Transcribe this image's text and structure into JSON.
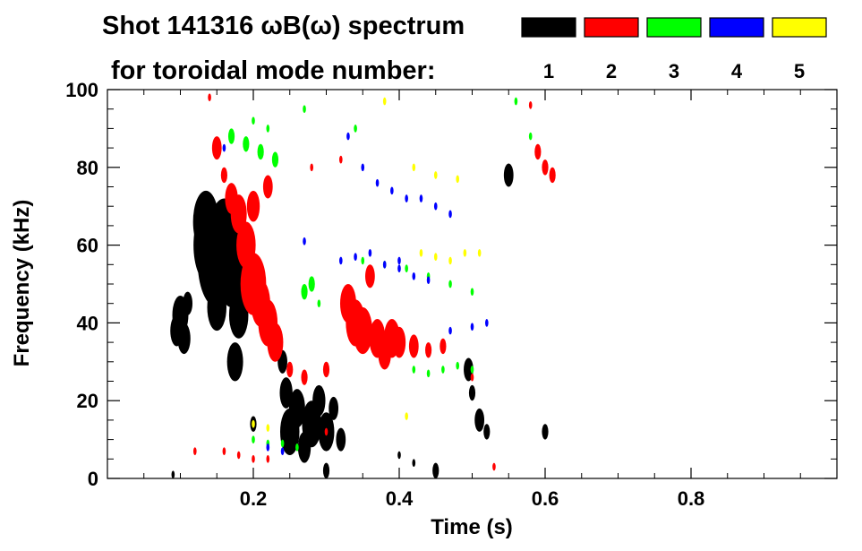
{
  "chart_data": {
    "type": "scatter",
    "title_line1": "Shot 141316 ωB(ω) spectrum",
    "title_line2": "for toroidal mode number:",
    "xlabel": "Time (s)",
    "ylabel": "Frequency (kHz)",
    "xlim": [
      0.0,
      1.0
    ],
    "ylim": [
      0,
      100
    ],
    "x_ticks": [
      0.2,
      0.4,
      0.6,
      0.8
    ],
    "x_tick_labels": [
      "0.2",
      "0.4",
      "0.6",
      "0.8"
    ],
    "y_ticks": [
      0,
      20,
      40,
      60,
      80,
      100
    ],
    "y_tick_labels": [
      "0",
      "20",
      "40",
      "60",
      "80",
      "100"
    ],
    "legend_position": "top-right",
    "series": [
      {
        "name": "1",
        "color": "#000000",
        "points": [
          [
            0.095,
            38,
            4
          ],
          [
            0.1,
            42,
            5
          ],
          [
            0.105,
            36,
            4
          ],
          [
            0.11,
            45,
            3
          ],
          [
            0.135,
            66,
            8
          ],
          [
            0.14,
            60,
            10
          ],
          [
            0.15,
            56,
            12
          ],
          [
            0.16,
            62,
            10
          ],
          [
            0.17,
            52,
            8
          ],
          [
            0.18,
            42,
            6
          ],
          [
            0.175,
            30,
            5
          ],
          [
            0.15,
            44,
            6
          ],
          [
            0.13,
            70,
            3
          ],
          [
            0.19,
            55,
            6
          ],
          [
            0.25,
            12,
            6
          ],
          [
            0.26,
            18,
            5
          ],
          [
            0.27,
            8,
            4
          ],
          [
            0.28,
            14,
            6
          ],
          [
            0.29,
            20,
            4
          ],
          [
            0.3,
            12,
            5
          ],
          [
            0.31,
            18,
            3
          ],
          [
            0.32,
            10,
            3
          ],
          [
            0.24,
            30,
            3
          ],
          [
            0.245,
            22,
            4
          ],
          [
            0.495,
            28,
            3
          ],
          [
            0.5,
            22,
            2
          ],
          [
            0.51,
            15,
            3
          ],
          [
            0.52,
            12,
            2
          ],
          [
            0.3,
            2,
            2
          ],
          [
            0.45,
            2,
            2
          ],
          [
            0.2,
            14,
            2
          ],
          [
            0.55,
            78,
            3
          ],
          [
            0.6,
            12,
            2
          ],
          [
            0.4,
            6,
            1
          ],
          [
            0.09,
            1,
            1
          ],
          [
            0.42,
            4,
            1
          ]
        ]
      },
      {
        "name": "2",
        "color": "#ff0000",
        "points": [
          [
            0.14,
            98,
            1
          ],
          [
            0.15,
            85,
            3
          ],
          [
            0.16,
            78,
            2
          ],
          [
            0.17,
            72,
            4
          ],
          [
            0.18,
            68,
            5
          ],
          [
            0.19,
            60,
            6
          ],
          [
            0.2,
            50,
            8
          ],
          [
            0.21,
            45,
            6
          ],
          [
            0.22,
            40,
            6
          ],
          [
            0.23,
            35,
            5
          ],
          [
            0.2,
            70,
            4
          ],
          [
            0.22,
            75,
            3
          ],
          [
            0.25,
            28,
            2
          ],
          [
            0.27,
            26,
            2
          ],
          [
            0.3,
            28,
            2
          ],
          [
            0.33,
            45,
            5
          ],
          [
            0.34,
            40,
            6
          ],
          [
            0.35,
            38,
            6
          ],
          [
            0.36,
            52,
            3
          ],
          [
            0.37,
            36,
            5
          ],
          [
            0.38,
            32,
            4
          ],
          [
            0.39,
            36,
            5
          ],
          [
            0.4,
            35,
            4
          ],
          [
            0.42,
            34,
            3
          ],
          [
            0.44,
            33,
            2
          ],
          [
            0.46,
            34,
            2
          ],
          [
            0.6,
            80,
            2
          ],
          [
            0.59,
            84,
            2
          ],
          [
            0.61,
            78,
            2
          ],
          [
            0.58,
            96,
            1
          ],
          [
            0.12,
            7,
            1
          ],
          [
            0.16,
            7,
            1
          ],
          [
            0.18,
            6,
            1
          ],
          [
            0.2,
            5,
            1
          ],
          [
            0.22,
            5,
            1
          ],
          [
            0.3,
            12,
            1
          ],
          [
            0.28,
            80,
            1
          ],
          [
            0.32,
            82,
            1
          ],
          [
            0.5,
            26,
            1
          ],
          [
            0.53,
            3,
            1
          ]
        ]
      },
      {
        "name": "3",
        "color": "#00ff00",
        "points": [
          [
            0.17,
            88,
            2
          ],
          [
            0.19,
            86,
            2
          ],
          [
            0.21,
            84,
            2
          ],
          [
            0.23,
            82,
            2
          ],
          [
            0.2,
            92,
            1
          ],
          [
            0.22,
            90,
            1
          ],
          [
            0.27,
            48,
            2
          ],
          [
            0.28,
            50,
            2
          ],
          [
            0.29,
            45,
            1
          ],
          [
            0.35,
            56,
            1
          ],
          [
            0.38,
            55,
            1
          ],
          [
            0.41,
            54,
            1
          ],
          [
            0.44,
            52,
            1
          ],
          [
            0.47,
            50,
            1
          ],
          [
            0.5,
            48,
            1
          ],
          [
            0.42,
            28,
            1
          ],
          [
            0.44,
            27,
            1
          ],
          [
            0.46,
            28,
            1
          ],
          [
            0.48,
            29,
            1
          ],
          [
            0.5,
            28,
            1
          ],
          [
            0.2,
            10,
            1
          ],
          [
            0.22,
            9,
            1
          ],
          [
            0.24,
            9,
            1
          ],
          [
            0.26,
            8,
            1
          ],
          [
            0.56,
            97,
            1
          ],
          [
            0.58,
            88,
            1
          ],
          [
            0.27,
            95,
            1
          ],
          [
            0.34,
            90,
            1
          ]
        ]
      },
      {
        "name": "4",
        "color": "#0000ff",
        "points": [
          [
            0.33,
            88,
            1
          ],
          [
            0.35,
            80,
            1
          ],
          [
            0.37,
            76,
            1
          ],
          [
            0.39,
            74,
            1
          ],
          [
            0.41,
            72,
            1
          ],
          [
            0.43,
            72,
            1
          ],
          [
            0.45,
            70,
            1
          ],
          [
            0.47,
            68,
            1
          ],
          [
            0.32,
            56,
            1
          ],
          [
            0.34,
            57,
            1
          ],
          [
            0.36,
            58,
            1
          ],
          [
            0.38,
            55,
            1
          ],
          [
            0.4,
            54,
            1
          ],
          [
            0.42,
            52,
            1
          ],
          [
            0.44,
            51,
            1
          ],
          [
            0.47,
            38,
            1
          ],
          [
            0.5,
            39,
            1
          ],
          [
            0.52,
            40,
            1
          ],
          [
            0.16,
            85,
            1
          ],
          [
            0.27,
            61,
            1
          ],
          [
            0.4,
            56,
            1
          ],
          [
            0.22,
            8,
            1
          ],
          [
            0.24,
            7,
            1
          ]
        ]
      },
      {
        "name": "5",
        "color": "#ffff00",
        "points": [
          [
            0.43,
            58,
            1
          ],
          [
            0.45,
            57,
            1
          ],
          [
            0.47,
            56,
            1
          ],
          [
            0.49,
            58,
            1
          ],
          [
            0.51,
            58,
            1
          ],
          [
            0.42,
            80,
            1
          ],
          [
            0.45,
            78,
            1
          ],
          [
            0.48,
            77,
            1
          ],
          [
            0.2,
            14,
            1
          ],
          [
            0.22,
            13,
            1
          ],
          [
            0.41,
            16,
            1
          ],
          [
            0.38,
            97,
            1
          ]
        ]
      }
    ]
  }
}
